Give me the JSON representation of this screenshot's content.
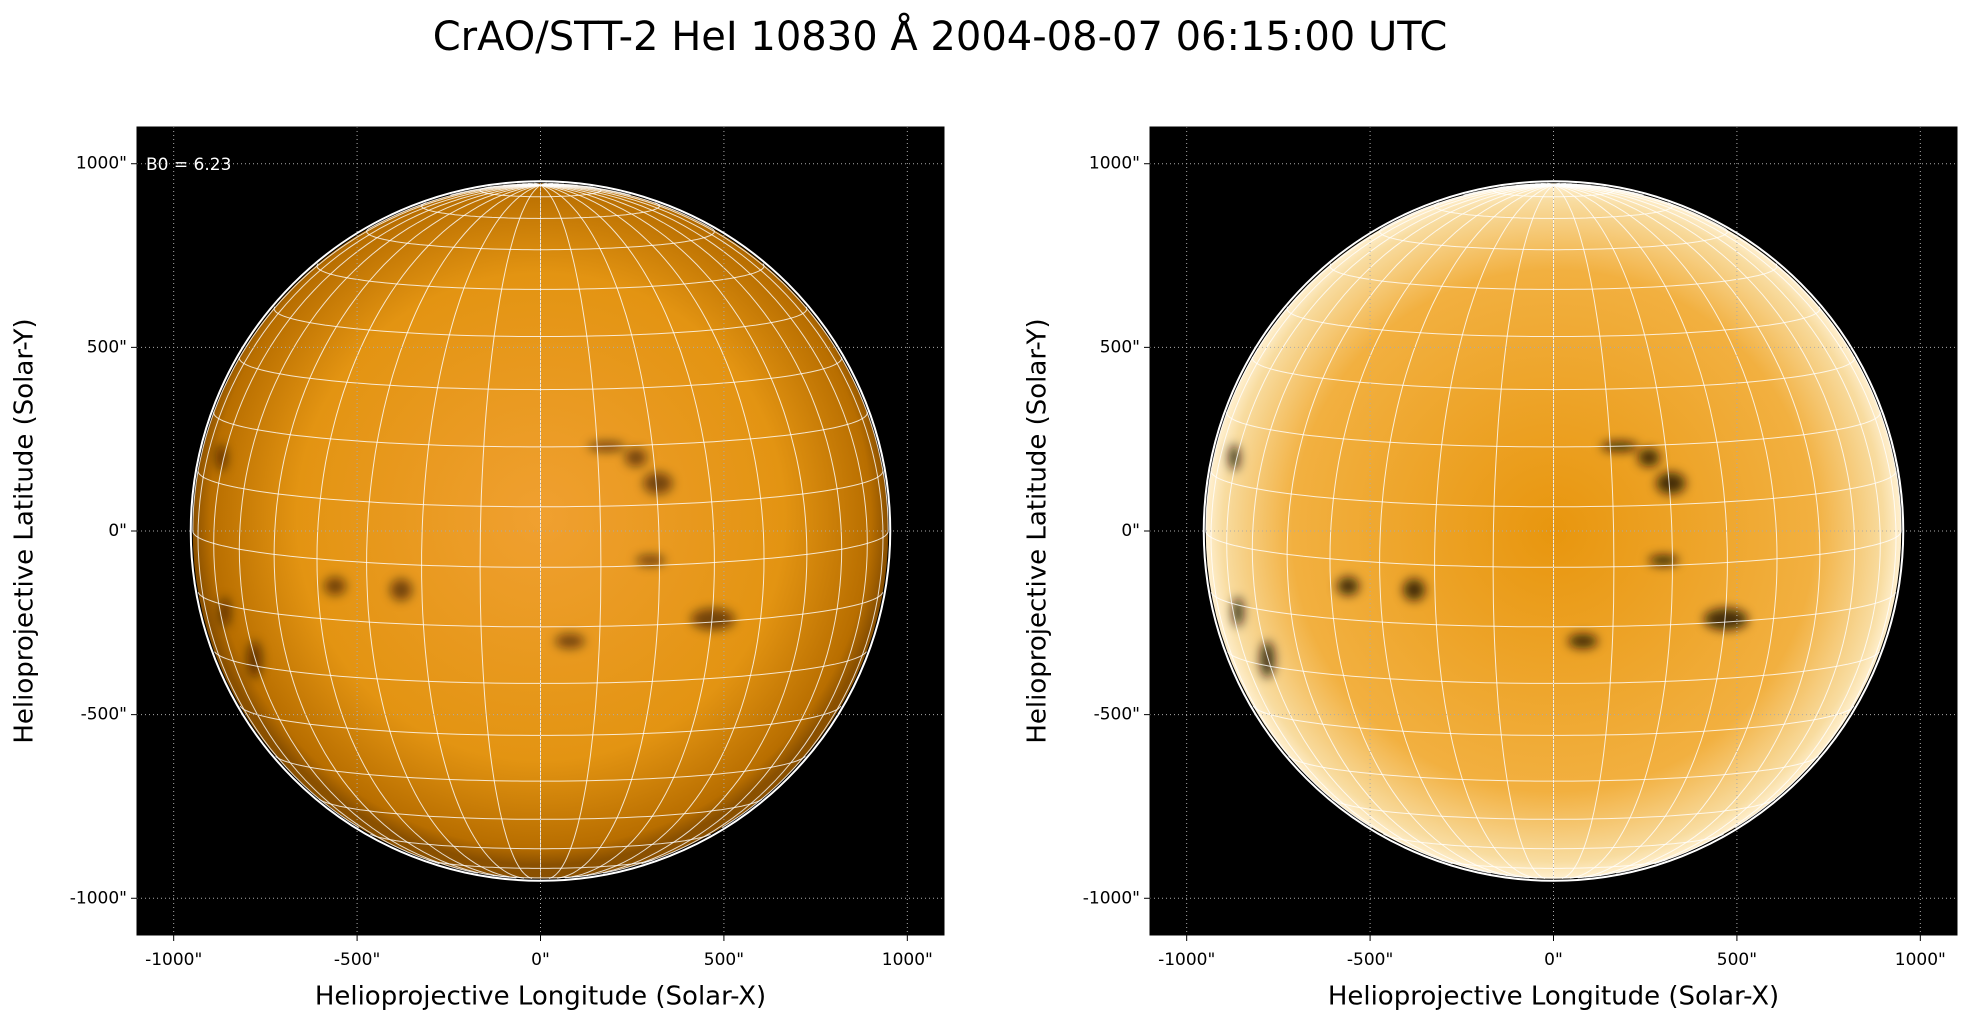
{
  "title": "CrAO/STT-2 HeI 10830 Å 2004-08-07 06:15:00 UTC",
  "chart_data": [
    {
      "type": "image",
      "xlabel": "Helioprojective Longitude (Solar-X)",
      "ylabel": "Helioprojective Latitude (Solar-Y)",
      "annotation": "B0 = 6.23",
      "xlim": [
        -1100,
        1100
      ],
      "ylim": [
        -1100,
        1100
      ],
      "xticks": [
        {
          "value": -1000,
          "label": "-1000\""
        },
        {
          "value": -500,
          "label": "-500\""
        },
        {
          "value": 0,
          "label": "0\""
        },
        {
          "value": 500,
          "label": "500\""
        },
        {
          "value": 1000,
          "label": "1000\""
        }
      ],
      "yticks": [
        {
          "value": -1000,
          "label": "-1000\""
        },
        {
          "value": -500,
          "label": "-500\""
        },
        {
          "value": 0,
          "label": "0\""
        },
        {
          "value": 500,
          "label": "500\""
        },
        {
          "value": 1000,
          "label": "1000\""
        }
      ],
      "grid": true
    },
    {
      "type": "image",
      "xlabel": "Helioprojective Longitude (Solar-X)",
      "ylabel": "Helioprojective Latitude (Solar-Y)",
      "xlim": [
        -1100,
        1100
      ],
      "ylim": [
        -1100,
        1100
      ],
      "xticks": [
        {
          "value": -1000,
          "label": "-1000\""
        },
        {
          "value": -500,
          "label": "-500\""
        },
        {
          "value": 0,
          "label": "0\""
        },
        {
          "value": 500,
          "label": "500\""
        },
        {
          "value": 1000,
          "label": "1000\""
        }
      ],
      "yticks": [
        {
          "value": -1000,
          "label": "-1000\""
        },
        {
          "value": -500,
          "label": "-500\""
        },
        {
          "value": 0,
          "label": "0\""
        },
        {
          "value": 500,
          "label": "500\""
        },
        {
          "value": 1000,
          "label": "1000\""
        }
      ],
      "grid": true
    }
  ]
}
